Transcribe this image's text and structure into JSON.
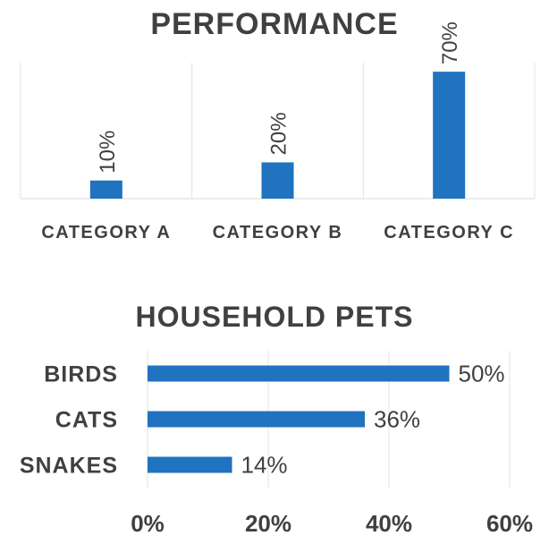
{
  "chart_data": [
    {
      "type": "bar",
      "title": "PERFORMANCE",
      "categories": [
        "CATEGORY A",
        "CATEGORY B",
        "CATEGORY C"
      ],
      "values": [
        10,
        20,
        70
      ],
      "value_labels": [
        "10%",
        "20%",
        "70%"
      ],
      "ylim": [
        0,
        75
      ],
      "grid": "vertical separators between categories",
      "bar_color": "#1F73BF"
    },
    {
      "type": "bar",
      "orientation": "horizontal",
      "title": "HOUSEHOLD PETS",
      "categories": [
        "BIRDS",
        "CATS",
        "SNAKES"
      ],
      "values": [
        50,
        36,
        14
      ],
      "value_labels": [
        "50%",
        "36%",
        "14%"
      ],
      "xlim": [
        0,
        60
      ],
      "xticks": [
        "0%",
        "20%",
        "40%",
        "60%"
      ],
      "grid": "vertical gridlines at each x tick",
      "bar_color": "#1F73BF"
    }
  ]
}
